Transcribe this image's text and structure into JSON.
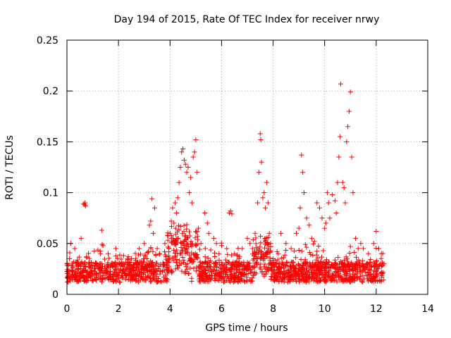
{
  "chart_data": {
    "type": "scatter",
    "title": "Day 194 of 2015, Rate Of TEC Index for receiver nrwy",
    "xlabel": "GPS time / hours",
    "ylabel": "ROTI / TECUs",
    "xlim": [
      0,
      14
    ],
    "ylim": [
      0,
      0.25
    ],
    "xticks": [
      0,
      2,
      4,
      6,
      8,
      10,
      12,
      14
    ],
    "xtick_labels": [
      "0",
      "2",
      "4",
      "6",
      "8",
      "10",
      "12",
      "14"
    ],
    "yticks": [
      0,
      0.05,
      0.1,
      0.15,
      0.2,
      0.25
    ],
    "ytick_labels": [
      "0",
      "0.05",
      "0.1",
      "0.15",
      "0.2",
      "0.25"
    ],
    "grid": true,
    "marker": "+",
    "marker_color": "#ff0000",
    "series": [
      {
        "name": "ROTI",
        "points": [
          [
            0.05,
            0.012
          ],
          [
            0.1,
            0.035
          ],
          [
            0.15,
            0.05
          ],
          [
            0.2,
            0.02
          ],
          [
            0.3,
            0.045
          ],
          [
            0.35,
            0.015
          ],
          [
            0.45,
            0.025
          ],
          [
            0.55,
            0.055
          ],
          [
            0.6,
            0.03
          ],
          [
            0.65,
            0.089
          ],
          [
            0.68,
            0.088
          ],
          [
            0.7,
            0.09
          ],
          [
            0.72,
            0.087
          ],
          [
            0.75,
            0.018
          ],
          [
            0.9,
            0.02
          ],
          [
            1.0,
            0.028
          ],
          [
            1.1,
            0.03
          ],
          [
            1.3,
            0.04
          ],
          [
            1.35,
            0.063
          ],
          [
            1.4,
            0.048
          ],
          [
            1.5,
            0.022
          ],
          [
            1.6,
            0.04
          ],
          [
            1.8,
            0.03
          ],
          [
            1.9,
            0.045
          ],
          [
            2.0,
            0.025
          ],
          [
            2.2,
            0.038
          ],
          [
            2.5,
            0.035
          ],
          [
            2.7,
            0.03
          ],
          [
            2.8,
            0.045
          ],
          [
            3.0,
            0.05
          ],
          [
            3.05,
            0.038
          ],
          [
            3.2,
            0.068
          ],
          [
            3.25,
            0.072
          ],
          [
            3.3,
            0.094
          ],
          [
            3.35,
            0.06
          ],
          [
            3.4,
            0.085
          ],
          [
            3.5,
            0.045
          ],
          [
            3.6,
            0.04
          ],
          [
            3.8,
            0.05
          ],
          [
            3.9,
            0.058
          ],
          [
            4.0,
            0.06
          ],
          [
            4.05,
            0.072
          ],
          [
            4.1,
            0.085
          ],
          [
            4.15,
            0.07
          ],
          [
            4.2,
            0.09
          ],
          [
            4.25,
            0.08
          ],
          [
            4.3,
            0.095
          ],
          [
            4.35,
            0.11
          ],
          [
            4.4,
            0.125
          ],
          [
            4.45,
            0.14
          ],
          [
            4.5,
            0.143
          ],
          [
            4.55,
            0.132
          ],
          [
            4.6,
            0.128
          ],
          [
            4.65,
            0.12
          ],
          [
            4.7,
            0.125
          ],
          [
            4.75,
            0.1
          ],
          [
            4.8,
            0.115
          ],
          [
            4.85,
            0.09
          ],
          [
            4.9,
            0.135
          ],
          [
            4.95,
            0.14
          ],
          [
            5.0,
            0.152
          ],
          [
            5.05,
            0.12
          ],
          [
            5.1,
            0.065
          ],
          [
            5.2,
            0.05
          ],
          [
            5.35,
            0.08
          ],
          [
            5.45,
            0.07
          ],
          [
            5.5,
            0.06
          ],
          [
            5.7,
            0.055
          ],
          [
            5.8,
            0.05
          ],
          [
            5.9,
            0.04
          ],
          [
            6.0,
            0.048
          ],
          [
            6.2,
            0.045
          ],
          [
            6.3,
            0.08
          ],
          [
            6.35,
            0.082
          ],
          [
            6.4,
            0.079
          ],
          [
            6.5,
            0.04
          ],
          [
            6.6,
            0.038
          ],
          [
            6.8,
            0.045
          ],
          [
            7.0,
            0.055
          ],
          [
            7.1,
            0.05
          ],
          [
            7.2,
            0.045
          ],
          [
            7.3,
            0.06
          ],
          [
            7.4,
            0.09
          ],
          [
            7.45,
            0.12
          ],
          [
            7.5,
            0.158
          ],
          [
            7.52,
            0.152
          ],
          [
            7.55,
            0.13
          ],
          [
            7.6,
            0.095
          ],
          [
            7.65,
            0.1
          ],
          [
            7.7,
            0.085
          ],
          [
            7.75,
            0.11
          ],
          [
            7.8,
            0.09
          ],
          [
            7.85,
            0.06
          ],
          [
            7.9,
            0.05
          ],
          [
            8.0,
            0.035
          ],
          [
            8.2,
            0.04
          ],
          [
            8.3,
            0.06
          ],
          [
            8.5,
            0.05
          ],
          [
            8.7,
            0.045
          ],
          [
            8.9,
            0.06
          ],
          [
            9.0,
            0.065
          ],
          [
            9.05,
            0.085
          ],
          [
            9.1,
            0.137
          ],
          [
            9.15,
            0.12
          ],
          [
            9.2,
            0.1
          ],
          [
            9.3,
            0.075
          ],
          [
            9.4,
            0.068
          ],
          [
            9.5,
            0.055
          ],
          [
            9.6,
            0.052
          ],
          [
            9.7,
            0.09
          ],
          [
            9.8,
            0.085
          ],
          [
            9.9,
            0.075
          ],
          [
            10.0,
            0.065
          ],
          [
            10.05,
            0.07
          ],
          [
            10.1,
            0.1
          ],
          [
            10.15,
            0.09
          ],
          [
            10.2,
            0.075
          ],
          [
            10.3,
            0.098
          ],
          [
            10.4,
            0.092
          ],
          [
            10.45,
            0.08
          ],
          [
            10.5,
            0.11
          ],
          [
            10.55,
            0.135
          ],
          [
            10.6,
            0.155
          ],
          [
            10.62,
            0.207
          ],
          [
            10.7,
            0.11
          ],
          [
            10.75,
            0.105
          ],
          [
            10.8,
            0.09
          ],
          [
            10.85,
            0.15
          ],
          [
            10.9,
            0.165
          ],
          [
            10.95,
            0.18
          ],
          [
            11.0,
            0.199
          ],
          [
            11.05,
            0.135
          ],
          [
            11.1,
            0.1
          ],
          [
            11.2,
            0.055
          ],
          [
            11.3,
            0.045
          ],
          [
            11.4,
            0.05
          ],
          [
            11.5,
            0.045
          ],
          [
            11.7,
            0.04
          ],
          [
            11.9,
            0.05
          ],
          [
            12.0,
            0.062
          ],
          [
            12.1,
            0.045
          ],
          [
            12.2,
            0.04
          ],
          [
            12.3,
            0.03
          ]
        ]
      }
    ]
  }
}
